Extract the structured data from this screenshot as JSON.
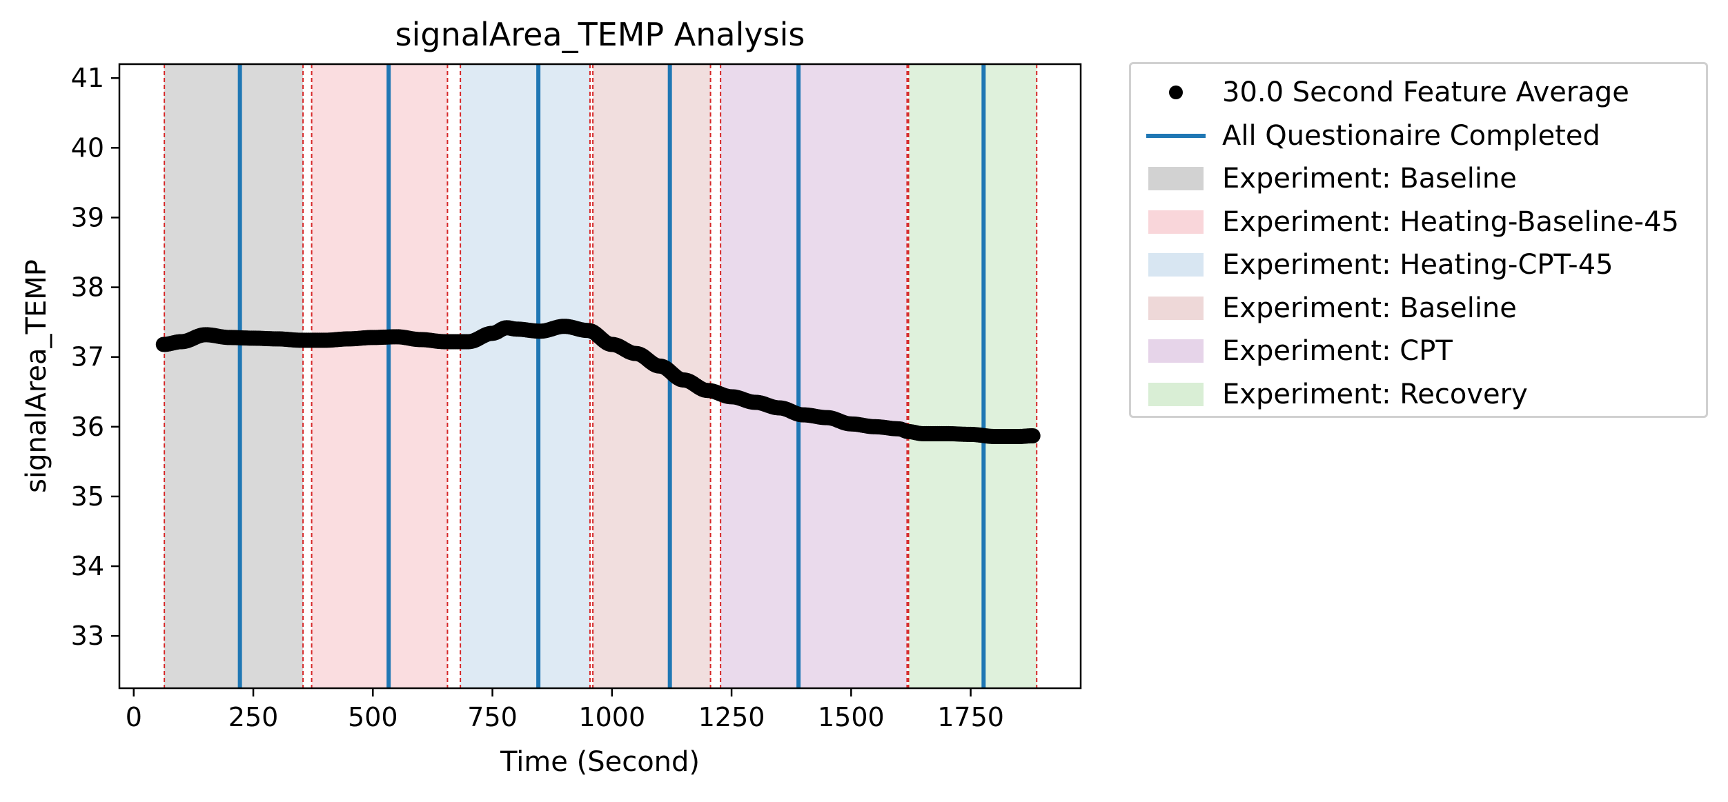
{
  "chart_data": {
    "type": "line",
    "title": "signalArea_TEMP Analysis",
    "xlabel": "Time (Second)",
    "ylabel": "signalArea_TEMP",
    "xlim": [
      -30,
      1980
    ],
    "ylim": [
      32.25,
      41.2
    ],
    "xticks": [
      0,
      250,
      500,
      750,
      1000,
      1250,
      1500,
      1750
    ],
    "yticks": [
      33,
      34,
      35,
      36,
      37,
      38,
      39,
      40,
      41
    ],
    "grid": false,
    "legend_position": "outside-right",
    "series": [
      {
        "name": "30.0 Second Feature Average",
        "style": "dots",
        "color": "#000000",
        "x": [
          62,
          100,
          150,
          200,
          250,
          300,
          350,
          400,
          450,
          500,
          550,
          600,
          650,
          700,
          750,
          780,
          800,
          850,
          900,
          950,
          1000,
          1050,
          1100,
          1150,
          1200,
          1250,
          1300,
          1350,
          1400,
          1450,
          1500,
          1550,
          1600,
          1620,
          1650,
          1700,
          1750,
          1800,
          1850,
          1880
        ],
        "y": [
          37.18,
          37.22,
          37.32,
          37.28,
          37.27,
          37.26,
          37.24,
          37.24,
          37.26,
          37.28,
          37.29,
          37.25,
          37.22,
          37.22,
          37.34,
          37.42,
          37.4,
          37.37,
          37.44,
          37.38,
          37.18,
          37.05,
          36.87,
          36.67,
          36.52,
          36.43,
          36.35,
          36.27,
          36.17,
          36.13,
          36.04,
          36.0,
          35.97,
          35.93,
          35.9,
          35.9,
          35.89,
          35.86,
          35.86,
          35.87
        ]
      },
      {
        "name": "All Questionaire Completed",
        "style": "vlines",
        "color": "#1f77b4",
        "x": [
          222,
          533,
          846,
          1121,
          1390,
          1777
        ]
      }
    ],
    "experiments": [
      {
        "name": "Experiment: Baseline",
        "start": 64,
        "end": 354,
        "color": "#bfbfbf"
      },
      {
        "name": "Experiment: Heating-Baseline-45",
        "start": 372,
        "end": 656,
        "color": "#f7c6cb"
      },
      {
        "name": "Experiment: Heating-CPT-45",
        "start": 683,
        "end": 954,
        "color": "#c8dced"
      },
      {
        "name": "Experiment: Baseline",
        "start": 960,
        "end": 1206,
        "color": "#e8c8c8"
      },
      {
        "name": "Experiment: CPT",
        "start": 1227,
        "end": 1617,
        "color": "#dcc2e0"
      },
      {
        "name": "Experiment: Recovery",
        "start": 1620,
        "end": 1888,
        "color": "#c9e7c4"
      }
    ],
    "boundary_color": "#d62728"
  },
  "legend": {
    "items": [
      {
        "label": "30.0 Second Feature Average",
        "kind": "marker",
        "color": "#000000"
      },
      {
        "label": "All Questionaire Completed",
        "kind": "line",
        "color": "#1f77b4"
      },
      {
        "label": "Experiment: Baseline",
        "kind": "patch",
        "color": "#bfbfbf"
      },
      {
        "label": "Experiment: Heating-Baseline-45",
        "kind": "patch",
        "color": "#f7c6cb"
      },
      {
        "label": "Experiment: Heating-CPT-45",
        "kind": "patch",
        "color": "#c8dced"
      },
      {
        "label": "Experiment: Baseline",
        "kind": "patch",
        "color": "#e8c8c8"
      },
      {
        "label": "Experiment: CPT",
        "kind": "patch",
        "color": "#dcc2e0"
      },
      {
        "label": "Experiment: Recovery",
        "kind": "patch",
        "color": "#c9e7c4"
      }
    ]
  }
}
